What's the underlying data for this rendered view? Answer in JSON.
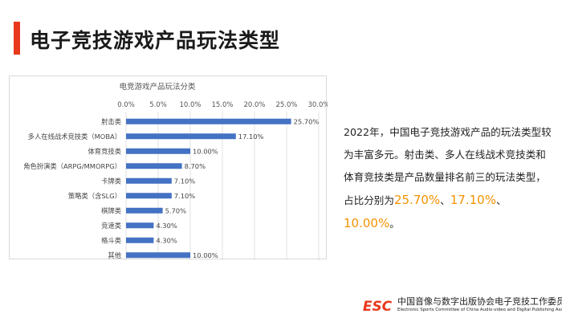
{
  "slide": {
    "title": "电子竞技游戏产品玩法类型",
    "accent_color": "#e8391d"
  },
  "chart_data": {
    "type": "bar",
    "orientation": "horizontal",
    "title": "电竞游戏产品玩法分类",
    "xlabel": "",
    "ylabel": "",
    "categories": [
      "射击类",
      "多人在线战术竞技类（MOBA）",
      "体育竞技类",
      "角色扮演类（ARPG/MMORPG）",
      "卡牌类",
      "策略类（含SLG）",
      "棋牌类",
      "竞速类",
      "格斗类",
      "其他"
    ],
    "values": [
      25.7,
      17.1,
      10.0,
      8.7,
      7.1,
      7.1,
      5.7,
      4.3,
      4.3,
      10.0
    ],
    "data_labels": [
      "25.70%",
      "17.10%",
      "10.00%",
      "8.70%",
      "7.10%",
      "7.10%",
      "5.70%",
      "4.30%",
      "4.30%",
      "10.00%"
    ],
    "xlim": [
      0,
      30
    ],
    "x_ticks": [
      "0.0%",
      "5.0%",
      "10.0%",
      "15.0%",
      "20.0%",
      "25.0%",
      "30.0%"
    ],
    "x_axis_position": "top",
    "grid": true,
    "legend": "none",
    "bar_color": "#4472c4"
  },
  "summary": {
    "text_before": "2022年，中国电子竞技游戏产品的玩法类型较为丰富多元。射击类、多人在线战术竞技类和体育竞技类是产品数量排名前三的玩法类型，占比分别为",
    "value1": "25.70%",
    "sep1": "、",
    "value2": "17.10%",
    "sep2": "、",
    "value3": "10.00%",
    "text_after": "。",
    "highlight_color": "#f39200"
  },
  "footer": {
    "logo_text": "ESC",
    "org_cn": "中国音像与数字出版协会电子竞技工作委员会",
    "org_en": "Electronic Sports Committee of China Audio-video and Digital Publishing Association",
    "logo_color": "#e8391d"
  }
}
